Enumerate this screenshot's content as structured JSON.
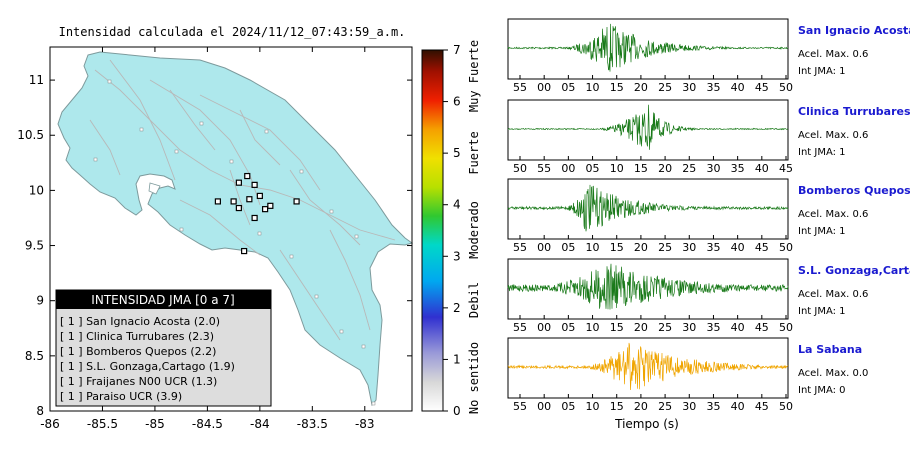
{
  "map": {
    "title": "Intensidad calculada el 2024/11/12_07:43:59_a.m.",
    "x_ticks": [
      "-86",
      "-85.5",
      "-85",
      "-84.5",
      "-84",
      "-83.5",
      "-83"
    ],
    "y_ticks": [
      "11",
      "10.5",
      "10",
      "9.5",
      "9",
      "8.5",
      "8"
    ],
    "xlim": [
      -86,
      -82.55
    ],
    "ylim": [
      8,
      11.3
    ],
    "land_color": "#aee8ec",
    "stations": [
      {
        "lon": -84.2,
        "lat": 10.07
      },
      {
        "lon": -84.12,
        "lat": 10.13
      },
      {
        "lon": -84.05,
        "lat": 10.05
      },
      {
        "lon": -84.0,
        "lat": 9.95
      },
      {
        "lon": -84.1,
        "lat": 9.92
      },
      {
        "lon": -84.25,
        "lat": 9.9
      },
      {
        "lon": -84.4,
        "lat": 9.9
      },
      {
        "lon": -83.9,
        "lat": 9.86
      },
      {
        "lon": -83.65,
        "lat": 9.9
      },
      {
        "lon": -83.95,
        "lat": 9.83
      },
      {
        "lon": -84.2,
        "lat": 9.84
      },
      {
        "lon": -84.05,
        "lat": 9.75
      },
      {
        "lon": -84.15,
        "lat": 9.45
      }
    ]
  },
  "colorbar": {
    "ticks": [
      "7",
      "6",
      "5",
      "4",
      "3",
      "2",
      "1",
      "0"
    ],
    "labels": [
      "Muy Fuerte",
      "Fuerte",
      "Moderado",
      "Debil",
      "No sentido"
    ],
    "range": [
      0,
      7
    ]
  },
  "legend": {
    "title": "INTENSIDAD JMA [0 a 7]",
    "items": [
      "[ 1 ] San Ignacio Acosta (2.0)",
      "[ 1 ] Clinica Turrubares (2.3)",
      "[ 1 ] Bomberos Quepos (2.2)",
      "[ 1 ] S.L. Gonzaga,Cartago (1.9)",
      "[ 1 ] Fraijanes N00 UCR (1.3)",
      "[ 1 ] Paraiso UCR (3.9)"
    ]
  },
  "chart_data": [
    {
      "type": "scatter",
      "title": "Intensidad calculada el 2024/11/12_07:43:59_a.m.",
      "xlim": [
        -86,
        -82.55
      ],
      "ylim": [
        8,
        11.3
      ],
      "x_ticks": [
        -86,
        -85.5,
        -85,
        -84.5,
        -84,
        -83.5,
        -83
      ],
      "y_ticks": [
        8,
        8.5,
        9,
        9.5,
        10,
        10.5,
        11
      ],
      "colorbar": {
        "min": 0,
        "max": 7,
        "labels": [
          "No sentido",
          "Debil",
          "Moderado",
          "Fuerte",
          "Muy Fuerte"
        ]
      },
      "legend": {
        "title": "INTENSIDAD JMA [0 a 7]",
        "position": "bottom-left"
      }
    },
    {
      "type": "line",
      "xlabel": "Tiempo (s)",
      "traces": [
        {
          "name": "San Ignacio Acosta",
          "amax": "Acel. Max. 0.6",
          "int": "Int JMA: 1",
          "color": "#1a7a1a",
          "ticks": [
            "55",
            "00",
            "05",
            "10",
            "15",
            "20",
            "25",
            "30",
            "35",
            "40",
            "45",
            "50"
          ],
          "onset": 0.18,
          "peak": 0.36,
          "amp": 0.95,
          "decay": 0.13,
          "noise": 0.03
        },
        {
          "name": "Clinica Turrubares",
          "amax": "Acel. Max. 0.6",
          "int": "Int JMA: 1",
          "color": "#1a7a1a",
          "ticks": [
            "50",
            "55",
            "00",
            "05",
            "10",
            "15",
            "20",
            "25",
            "30",
            "35",
            "40",
            "45"
          ],
          "onset": 0.3,
          "peak": 0.5,
          "amp": 0.9,
          "decay": 0.05,
          "noise": 0.02
        },
        {
          "name": "Bomberos Quepos",
          "amax": "Acel. Max. 0.6",
          "int": "Int JMA: 1",
          "color": "#1a7a1a",
          "ticks": [
            "55",
            "00",
            "05",
            "10",
            "15",
            "20",
            "25",
            "30",
            "35",
            "40",
            "45",
            "50"
          ],
          "onset": 0.19,
          "peak": 0.28,
          "amp": 0.95,
          "decay": 0.14,
          "noise": 0.05
        },
        {
          "name": "S.L. Gonzaga,Cartago",
          "amax": "Acel. Max. 0.6",
          "int": "Int JMA: 1",
          "color": "#1a7a1a",
          "ticks": [
            "55",
            "00",
            "05",
            "10",
            "15",
            "20",
            "25",
            "30",
            "35",
            "40",
            "45",
            "50"
          ],
          "onset": 0.05,
          "peak": 0.36,
          "amp": 0.95,
          "decay": 0.22,
          "noise": 0.12
        },
        {
          "name": "La Sabana",
          "amax": "Acel. Max. 0.0",
          "int": "Int JMA: 0",
          "color": "#f0a500",
          "ticks": [
            "55",
            "00",
            "05",
            "10",
            "15",
            "20",
            "25",
            "30",
            "35",
            "40",
            "45",
            "50"
          ],
          "onset": 0.24,
          "peak": 0.44,
          "amp": 0.95,
          "decay": 0.18,
          "noise": 0.05
        }
      ]
    }
  ]
}
